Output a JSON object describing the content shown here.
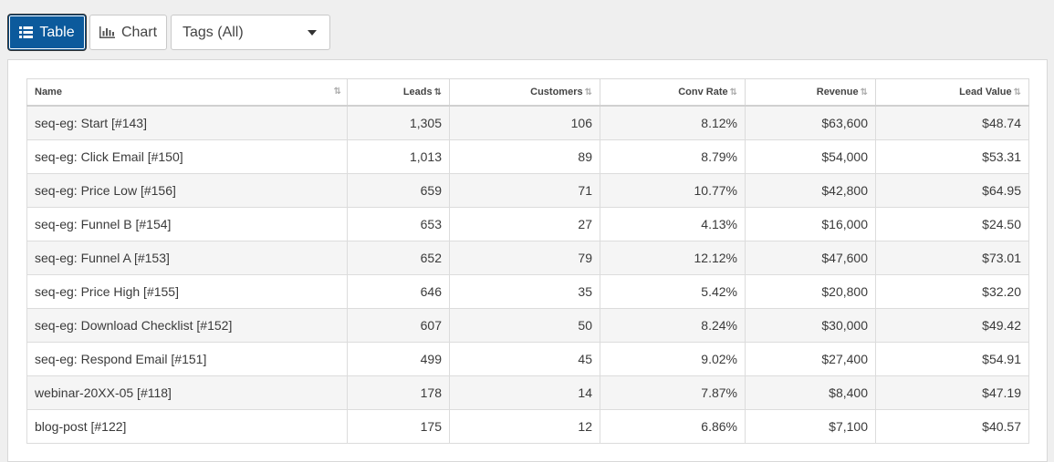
{
  "toolbar": {
    "table_label": "Table",
    "chart_label": "Chart",
    "tags_select": "Tags (All)"
  },
  "table": {
    "columns": [
      "Name",
      "Leads",
      "Customers",
      "Conv Rate",
      "Revenue",
      "Lead Value"
    ],
    "rows": [
      [
        "seq-eg: Start [#143]",
        "1,305",
        "106",
        "8.12%",
        "$63,600",
        "$48.74"
      ],
      [
        "seq-eg: Click Email [#150]",
        "1,013",
        "89",
        "8.79%",
        "$54,000",
        "$53.31"
      ],
      [
        "seq-eg: Price Low [#156]",
        "659",
        "71",
        "10.77%",
        "$42,800",
        "$64.95"
      ],
      [
        "seq-eg: Funnel B [#154]",
        "653",
        "27",
        "4.13%",
        "$16,000",
        "$24.50"
      ],
      [
        "seq-eg: Funnel A [#153]",
        "652",
        "79",
        "12.12%",
        "$47,600",
        "$73.01"
      ],
      [
        "seq-eg: Price High [#155]",
        "646",
        "35",
        "5.42%",
        "$20,800",
        "$32.20"
      ],
      [
        "seq-eg: Download Checklist [#152]",
        "607",
        "50",
        "8.24%",
        "$30,000",
        "$49.42"
      ],
      [
        "seq-eg: Respond Email [#151]",
        "499",
        "45",
        "9.02%",
        "$27,400",
        "$54.91"
      ],
      [
        "webinar-20XX-05 [#118]",
        "178",
        "14",
        "7.87%",
        "$8,400",
        "$47.19"
      ],
      [
        "blog-post [#122]",
        "175",
        "12",
        "6.86%",
        "$7,100",
        "$40.57"
      ]
    ]
  },
  "colors": {
    "active_button": "#0c5a9c",
    "stripe": "#f5f5f5",
    "page_bg": "#efefef"
  }
}
